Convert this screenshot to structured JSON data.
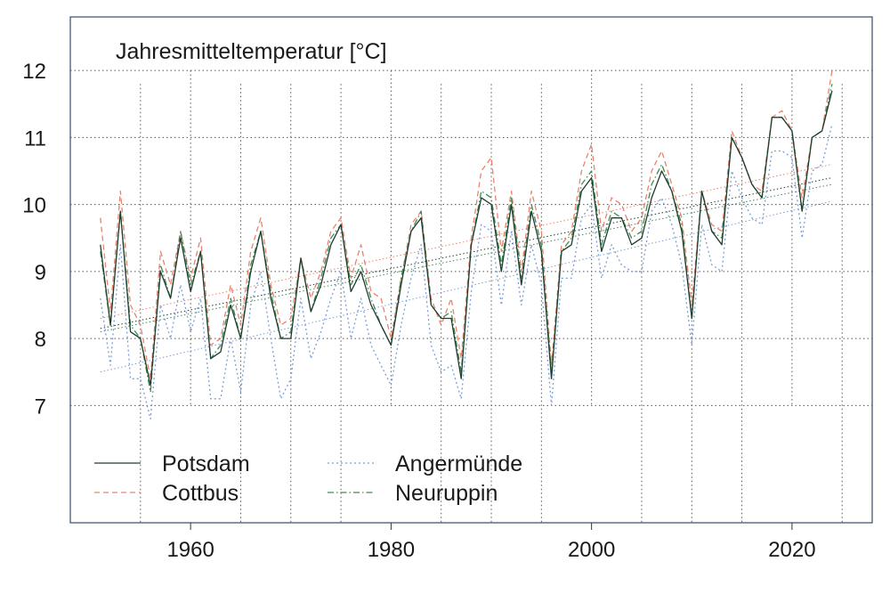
{
  "chart_data": {
    "type": "line",
    "title": "Jahresmitteltemperatur [°C]",
    "xlabel": "",
    "ylabel": "",
    "xlim": [
      1948,
      2028
    ],
    "ylim": [
      5.25,
      12.8
    ],
    "xticks": [
      1960,
      1980,
      2000,
      2020
    ],
    "xtick_labels": [
      "1960",
      "1980",
      "2000",
      "2020"
    ],
    "yticks": [
      7,
      8,
      9,
      10,
      11,
      12
    ],
    "ytick_labels": [
      "7",
      "8",
      "9",
      "10",
      "11",
      "12"
    ],
    "grid": true,
    "legend_position": "bottom-left",
    "x": [
      1951,
      1952,
      1953,
      1954,
      1955,
      1956,
      1957,
      1958,
      1959,
      1960,
      1961,
      1962,
      1963,
      1964,
      1965,
      1966,
      1967,
      1968,
      1969,
      1970,
      1971,
      1972,
      1973,
      1974,
      1975,
      1976,
      1977,
      1978,
      1979,
      1980,
      1981,
      1982,
      1983,
      1984,
      1985,
      1986,
      1987,
      1988,
      1989,
      1990,
      1991,
      1992,
      1993,
      1994,
      1995,
      1996,
      1997,
      1998,
      1999,
      2000,
      2001,
      2002,
      2003,
      2004,
      2005,
      2006,
      2007,
      2008,
      2009,
      2010,
      2011,
      2012,
      2013,
      2014,
      2015,
      2016,
      2017,
      2018,
      2019,
      2020,
      2021,
      2022,
      2023,
      2024
    ],
    "series": [
      {
        "name": "Potsdam",
        "color": "#1f3d2e",
        "dash": "",
        "values": [
          9.4,
          8.2,
          9.9,
          8.1,
          8.0,
          7.3,
          9.0,
          8.6,
          9.5,
          8.7,
          9.3,
          7.7,
          7.8,
          8.5,
          8.0,
          9.0,
          9.6,
          8.6,
          8.0,
          8.0,
          9.2,
          8.4,
          8.8,
          9.4,
          9.7,
          8.7,
          9.0,
          8.5,
          8.2,
          7.9,
          8.8,
          9.6,
          9.8,
          8.5,
          8.3,
          8.3,
          7.4,
          9.4,
          10.1,
          10.0,
          9.0,
          10.0,
          8.8,
          9.9,
          9.3,
          7.4,
          9.3,
          9.4,
          10.2,
          10.4,
          9.3,
          9.8,
          9.8,
          9.4,
          9.5,
          10.1,
          10.5,
          10.2,
          9.6,
          8.3,
          10.2,
          9.6,
          9.4,
          11.0,
          10.7,
          10.3,
          10.1,
          11.3,
          11.3,
          11.1,
          9.9,
          11.0,
          11.1,
          11.7
        ]
      },
      {
        "name": "Cottbus",
        "color": "#e8836c",
        "dash": "6,4",
        "values": [
          9.8,
          8.4,
          10.2,
          8.5,
          8.2,
          7.4,
          9.3,
          8.8,
          9.6,
          8.9,
          9.5,
          7.9,
          8.0,
          8.8,
          8.2,
          9.3,
          9.8,
          8.8,
          8.2,
          8.3,
          9.2,
          8.6,
          9.0,
          9.6,
          9.8,
          8.9,
          9.4,
          8.7,
          8.6,
          8.0,
          8.9,
          9.7,
          9.9,
          8.6,
          8.2,
          8.6,
          7.7,
          9.5,
          10.5,
          10.7,
          9.3,
          10.2,
          9.0,
          10.2,
          9.6,
          7.6,
          9.4,
          9.6,
          10.5,
          10.9,
          9.6,
          10.1,
          10.0,
          9.6,
          9.8,
          10.5,
          10.8,
          10.3,
          9.8,
          8.5,
          10.2,
          9.7,
          9.6,
          11.1,
          10.7,
          10.3,
          10.2,
          11.3,
          11.4,
          11.1,
          10.1,
          11.0,
          11.1,
          12.0
        ]
      },
      {
        "name": "Angermünde",
        "color": "#7a9fd6",
        "dash": "2,3",
        "values": [
          8.6,
          7.6,
          9.4,
          7.4,
          7.4,
          6.8,
          8.5,
          8.0,
          8.8,
          8.1,
          8.6,
          7.1,
          7.1,
          8.0,
          7.2,
          8.5,
          9.0,
          8.0,
          7.1,
          7.4,
          8.6,
          7.7,
          8.1,
          8.6,
          9.0,
          8.0,
          8.6,
          7.9,
          7.6,
          7.3,
          8.2,
          8.9,
          9.4,
          7.9,
          7.5,
          7.6,
          7.1,
          8.7,
          9.7,
          9.6,
          8.5,
          9.6,
          8.5,
          9.4,
          8.8,
          7.0,
          8.9,
          8.9,
          9.8,
          10.0,
          8.9,
          9.4,
          9.1,
          9.0,
          9.0,
          9.9,
          10.1,
          9.7,
          9.1,
          7.9,
          9.7,
          9.1,
          9.0,
          10.5,
          10.1,
          9.8,
          9.7,
          10.8,
          10.8,
          10.7,
          9.5,
          10.5,
          10.6,
          11.2
        ]
      },
      {
        "name": "Neuruppin",
        "color": "#3f8a55",
        "dash": "7,3,1.5,3",
        "values": [
          9.3,
          8.2,
          9.9,
          8.2,
          8.0,
          7.2,
          9.1,
          8.6,
          9.6,
          8.8,
          9.3,
          7.7,
          7.9,
          8.6,
          8.0,
          9.1,
          9.6,
          8.7,
          8.0,
          8.1,
          9.2,
          8.4,
          8.9,
          9.5,
          9.7,
          8.8,
          9.1,
          8.6,
          8.2,
          7.9,
          8.9,
          9.6,
          9.9,
          8.5,
          8.3,
          8.4,
          7.5,
          9.4,
          10.2,
          10.1,
          9.1,
          10.1,
          8.9,
          10.0,
          9.4,
          7.5,
          9.3,
          9.5,
          10.3,
          10.5,
          9.4,
          9.9,
          9.8,
          9.5,
          9.6,
          10.3,
          10.6,
          10.2,
          9.7,
          8.3,
          10.2,
          9.6,
          9.5,
          11.0,
          10.7,
          10.3,
          10.1,
          11.3,
          11.3,
          11.1,
          9.9,
          11.0,
          11.1,
          11.8
        ]
      }
    ],
    "trend_lines": [
      {
        "name": "Potsdam",
        "color": "#1f3d2e",
        "x": [
          1951,
          2024
        ],
        "y": [
          8.15,
          10.4
        ]
      },
      {
        "name": "Cottbus",
        "color": "#e8836c",
        "x": [
          1951,
          2024
        ],
        "y": [
          8.3,
          10.6
        ]
      },
      {
        "name": "Angermünde",
        "color": "#7a9fd6",
        "x": [
          1951,
          2024
        ],
        "y": [
          7.5,
          10.05
        ]
      },
      {
        "name": "Neuruppin",
        "color": "#3f8a55",
        "x": [
          1951,
          2024
        ],
        "y": [
          8.1,
          10.3
        ]
      }
    ]
  }
}
